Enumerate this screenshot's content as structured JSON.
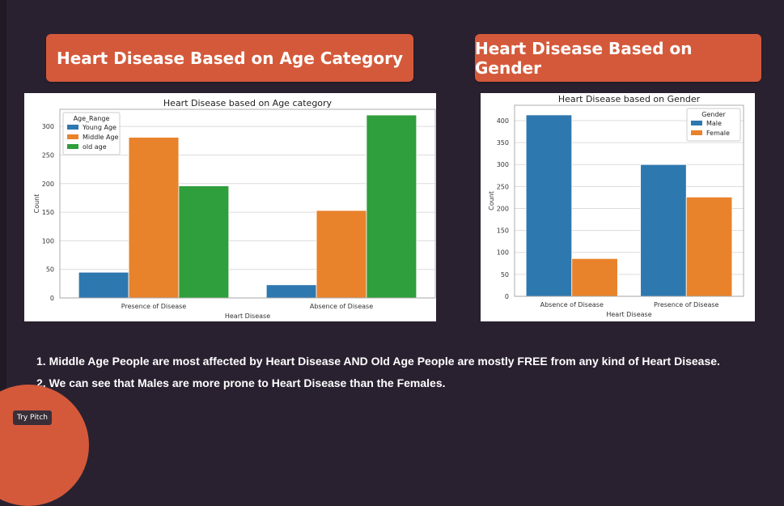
{
  "headings": {
    "age": "Heart Disease Based on Age Category",
    "gender": "Heart Disease Based on Gender"
  },
  "notes": [
    "1. Middle Age People are most affected by Heart Disease AND Old Age People are mostly FREE from any kind of Heart Disease.",
    "2. We can see that Males are more prone to Heart Disease than the Females."
  ],
  "button": {
    "label": "Try Pitch"
  },
  "colors": {
    "accent": "#d4593a",
    "background": "#2a2130",
    "blue": "#2e78b0",
    "orange": "#e8822b",
    "green": "#2f9e3c"
  },
  "chart_data": [
    {
      "type": "bar",
      "title": "Heart Disease based on Age category",
      "xlabel": "Heart Disease",
      "ylabel": "Count",
      "categories": [
        "Presence of Disease",
        "Absence of Disease"
      ],
      "series": [
        {
          "name": "Young Age",
          "values": [
            45,
            23
          ],
          "color": "#2e78b0"
        },
        {
          "name": "Middle Age",
          "values": [
            281,
            153
          ],
          "color": "#e8822b"
        },
        {
          "name": "old age",
          "values": [
            196,
            320
          ],
          "color": "#2f9e3c"
        }
      ],
      "ylim": [
        0,
        330
      ],
      "yticks": [
        0,
        50,
        100,
        150,
        200,
        250,
        300
      ],
      "legend": {
        "title": "Age_Range",
        "placement": "top-left"
      },
      "grid": true
    },
    {
      "type": "bar",
      "title": "Heart Disease based on Gender",
      "xlabel": "Heart Disease",
      "ylabel": "Count",
      "categories": [
        "Absence of Disease",
        "Presence of Disease"
      ],
      "series": [
        {
          "name": "Male",
          "values": [
            413,
            300
          ],
          "color": "#2e78b0"
        },
        {
          "name": "Female",
          "values": [
            86,
            226
          ],
          "color": "#e8822b"
        }
      ],
      "ylim": [
        0,
        435
      ],
      "yticks": [
        0,
        50,
        100,
        150,
        200,
        250,
        300,
        350,
        400
      ],
      "legend": {
        "title": "Gender",
        "placement": "top-right"
      },
      "grid": true
    }
  ]
}
